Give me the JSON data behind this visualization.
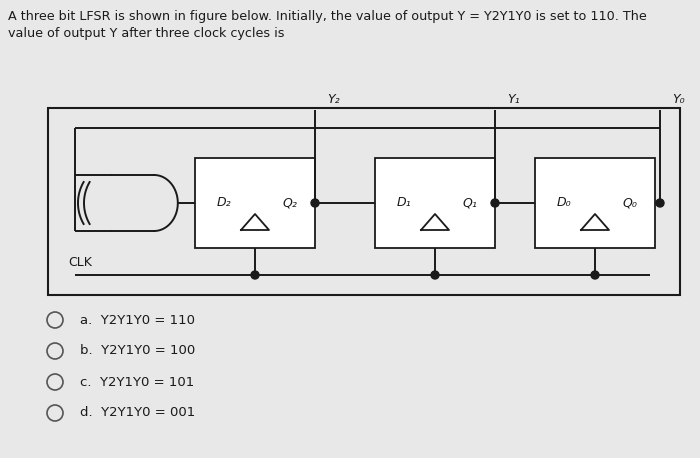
{
  "title_text": "A three bit LFSR is shown in figure below. Initially, the value of output Y = Y2Y1Y0 is set to 110. The\nvalue of output Y after three clock cycles is",
  "bg_color": "#e8e8e8",
  "diagram_bg": "#e0e0e0",
  "options": [
    "a.  Y2Y1Y0 = 110",
    "b.  Y2Y1Y0 = 100",
    "c.  Y2Y1Y0 = 101",
    "d.  Y2Y1Y0 = 001"
  ],
  "ff_labels": [
    [
      "D₂",
      "Q₂"
    ],
    [
      "D₁",
      "Q₁"
    ],
    [
      "D₀",
      "Q₀"
    ]
  ],
  "y_labels": [
    "Y₂",
    "Y₁",
    "Y₀"
  ],
  "clk_label": "CLK",
  "lc": "#1a1a1a",
  "bc": "#ffffff",
  "tc": "#1a1a1a"
}
